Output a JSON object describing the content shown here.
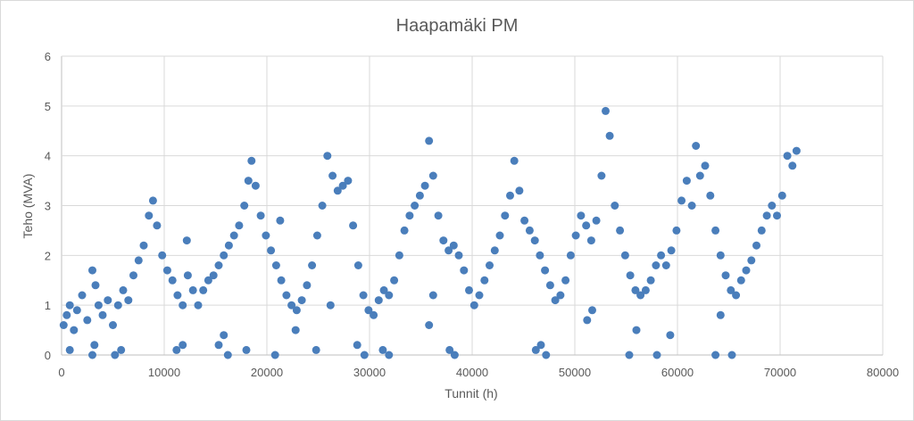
{
  "chart_data": {
    "type": "scatter",
    "title": "Haapamäki PM",
    "xlabel": "Tunnit (h)",
    "ylabel": "Teho (MVA)",
    "xlim": [
      0,
      80000
    ],
    "ylim": [
      0,
      6
    ],
    "x_ticks": [
      0,
      10000,
      20000,
      30000,
      40000,
      50000,
      60000,
      70000,
      80000
    ],
    "y_ticks": [
      0,
      1,
      2,
      3,
      4,
      5,
      6
    ],
    "grid": true,
    "legend": "none",
    "marker_color": "#4a7ebb",
    "series": [
      {
        "points": [
          [
            200,
            0.6
          ],
          [
            500,
            0.8
          ],
          [
            800,
            1.0
          ],
          [
            1200,
            0.5
          ],
          [
            1500,
            0.9
          ],
          [
            2000,
            1.2
          ],
          [
            2500,
            0.7
          ],
          [
            3000,
            1.7
          ],
          [
            3300,
            1.4
          ],
          [
            3600,
            1.0
          ],
          [
            4000,
            0.8
          ],
          [
            4500,
            1.1
          ],
          [
            5000,
            0.6
          ],
          [
            5500,
            1.0
          ],
          [
            6000,
            1.3
          ],
          [
            6500,
            1.1
          ],
          [
            7000,
            1.6
          ],
          [
            7500,
            1.9
          ],
          [
            8000,
            2.2
          ],
          [
            8500,
            2.8
          ],
          [
            8900,
            3.1
          ],
          [
            9300,
            2.6
          ],
          [
            9800,
            2.0
          ],
          [
            10300,
            1.7
          ],
          [
            10800,
            1.5
          ],
          [
            11300,
            1.2
          ],
          [
            11800,
            1.0
          ],
          [
            12300,
            1.6
          ],
          [
            12800,
            1.3
          ],
          [
            13300,
            1.0
          ],
          [
            13800,
            1.3
          ],
          [
            14300,
            1.5
          ],
          [
            14800,
            1.6
          ],
          [
            15300,
            1.8
          ],
          [
            15800,
            2.0
          ],
          [
            16300,
            2.2
          ],
          [
            16800,
            2.4
          ],
          [
            17300,
            2.6
          ],
          [
            17800,
            3.0
          ],
          [
            18200,
            3.5
          ],
          [
            18500,
            3.9
          ],
          [
            18900,
            3.4
          ],
          [
            19400,
            2.8
          ],
          [
            19900,
            2.4
          ],
          [
            20400,
            2.1
          ],
          [
            20900,
            1.8
          ],
          [
            21400,
            1.5
          ],
          [
            21900,
            1.2
          ],
          [
            22400,
            1.0
          ],
          [
            22900,
            0.9
          ],
          [
            23400,
            1.1
          ],
          [
            23900,
            1.4
          ],
          [
            24400,
            1.8
          ],
          [
            24900,
            2.4
          ],
          [
            25400,
            3.0
          ],
          [
            25900,
            4.0
          ],
          [
            26400,
            3.6
          ],
          [
            26900,
            3.3
          ],
          [
            27400,
            3.4
          ],
          [
            27900,
            3.5
          ],
          [
            28400,
            2.6
          ],
          [
            28900,
            1.8
          ],
          [
            29400,
            1.2
          ],
          [
            29900,
            0.9
          ],
          [
            30400,
            0.8
          ],
          [
            30900,
            1.1
          ],
          [
            31400,
            1.3
          ],
          [
            31900,
            1.2
          ],
          [
            32400,
            1.5
          ],
          [
            32900,
            2.0
          ],
          [
            33400,
            2.5
          ],
          [
            33900,
            2.8
          ],
          [
            34400,
            3.0
          ],
          [
            34900,
            3.2
          ],
          [
            35400,
            3.4
          ],
          [
            35800,
            4.3
          ],
          [
            36200,
            3.6
          ],
          [
            36700,
            2.8
          ],
          [
            37200,
            2.3
          ],
          [
            37700,
            2.1
          ],
          [
            38200,
            2.2
          ],
          [
            38700,
            2.0
          ],
          [
            39200,
            1.7
          ],
          [
            39700,
            1.3
          ],
          [
            40200,
            1.0
          ],
          [
            40700,
            1.2
          ],
          [
            41200,
            1.5
          ],
          [
            41700,
            1.8
          ],
          [
            42200,
            2.1
          ],
          [
            42700,
            2.4
          ],
          [
            43200,
            2.8
          ],
          [
            43700,
            3.2
          ],
          [
            44100,
            3.9
          ],
          [
            44600,
            3.3
          ],
          [
            45100,
            2.7
          ],
          [
            45600,
            2.5
          ],
          [
            46100,
            2.3
          ],
          [
            46600,
            2.0
          ],
          [
            47100,
            1.7
          ],
          [
            47600,
            1.4
          ],
          [
            48100,
            1.1
          ],
          [
            48600,
            1.2
          ],
          [
            49100,
            1.5
          ],
          [
            49600,
            2.0
          ],
          [
            50100,
            2.4
          ],
          [
            50600,
            2.8
          ],
          [
            51100,
            2.6
          ],
          [
            51600,
            2.3
          ],
          [
            52100,
            2.7
          ],
          [
            52600,
            3.6
          ],
          [
            53000,
            4.9
          ],
          [
            53400,
            4.4
          ],
          [
            53900,
            3.0
          ],
          [
            54400,
            2.5
          ],
          [
            54900,
            2.0
          ],
          [
            55400,
            1.6
          ],
          [
            55900,
            1.3
          ],
          [
            56400,
            1.2
          ],
          [
            56900,
            1.3
          ],
          [
            57400,
            1.5
          ],
          [
            57900,
            1.8
          ],
          [
            58400,
            2.0
          ],
          [
            58900,
            1.8
          ],
          [
            59400,
            2.1
          ],
          [
            59900,
            2.5
          ],
          [
            60400,
            3.1
          ],
          [
            60900,
            3.5
          ],
          [
            61400,
            3.0
          ],
          [
            61800,
            4.2
          ],
          [
            62200,
            3.6
          ],
          [
            62700,
            3.8
          ],
          [
            63200,
            3.2
          ],
          [
            63700,
            2.5
          ],
          [
            64200,
            2.0
          ],
          [
            64700,
            1.6
          ],
          [
            65200,
            1.3
          ],
          [
            65700,
            1.2
          ],
          [
            66200,
            1.5
          ],
          [
            66700,
            1.7
          ],
          [
            67200,
            1.9
          ],
          [
            67700,
            2.2
          ],
          [
            68200,
            2.5
          ],
          [
            68700,
            2.8
          ],
          [
            69200,
            3.0
          ],
          [
            69700,
            2.8
          ],
          [
            70200,
            3.2
          ],
          [
            70700,
            4.0
          ],
          [
            71200,
            3.8
          ],
          [
            71600,
            4.1
          ]
        ],
        "outliers": [
          [
            800,
            0.1
          ],
          [
            3000,
            0.0
          ],
          [
            3200,
            0.2
          ],
          [
            5200,
            0.0
          ],
          [
            5800,
            0.1
          ],
          [
            11200,
            0.1
          ],
          [
            11800,
            0.2
          ],
          [
            12200,
            2.3
          ],
          [
            15300,
            0.2
          ],
          [
            15800,
            0.4
          ],
          [
            16200,
            0.0
          ],
          [
            18000,
            0.1
          ],
          [
            20800,
            0.0
          ],
          [
            21300,
            2.7
          ],
          [
            22800,
            0.5
          ],
          [
            24800,
            0.1
          ],
          [
            26200,
            1.0
          ],
          [
            28800,
            0.2
          ],
          [
            29500,
            0.0
          ],
          [
            31300,
            0.1
          ],
          [
            31900,
            0.0
          ],
          [
            35800,
            0.6
          ],
          [
            36200,
            1.2
          ],
          [
            37800,
            0.1
          ],
          [
            38300,
            0.0
          ],
          [
            46200,
            0.1
          ],
          [
            46700,
            0.2
          ],
          [
            47200,
            0.0
          ],
          [
            51200,
            0.7
          ],
          [
            51700,
            0.9
          ],
          [
            55300,
            0.0
          ],
          [
            56000,
            0.5
          ],
          [
            58000,
            0.0
          ],
          [
            59300,
            0.4
          ],
          [
            63700,
            0.0
          ],
          [
            64200,
            0.8
          ],
          [
            65300,
            0.0
          ]
        ]
      }
    ]
  }
}
